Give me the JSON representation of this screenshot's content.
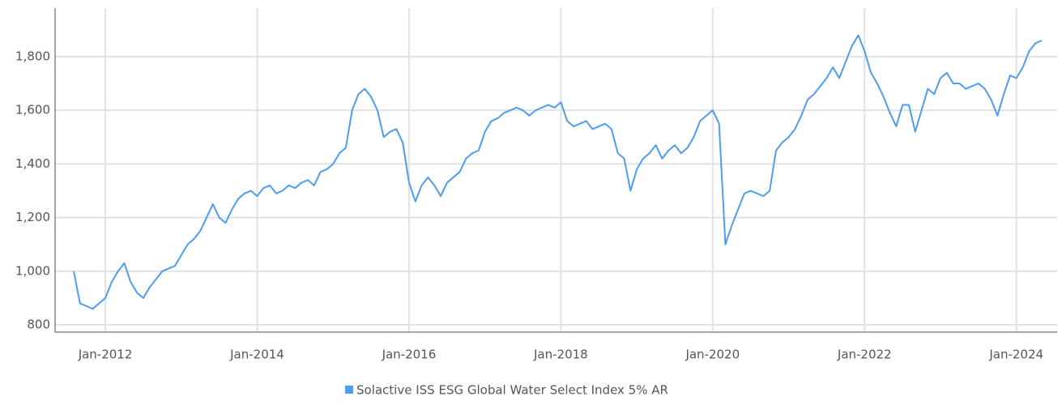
{
  "chart_data": {
    "type": "line",
    "x": [
      "Aug-2011",
      "Sep-2011",
      "Oct-2011",
      "Nov-2011",
      "Dec-2011",
      "Jan-2012",
      "Feb-2012",
      "Mar-2012",
      "Apr-2012",
      "May-2012",
      "Jun-2012",
      "Jul-2012",
      "Aug-2012",
      "Sep-2012",
      "Oct-2012",
      "Nov-2012",
      "Dec-2012",
      "Jan-2013",
      "Feb-2013",
      "Mar-2013",
      "Apr-2013",
      "May-2013",
      "Jun-2013",
      "Jul-2013",
      "Aug-2013",
      "Sep-2013",
      "Oct-2013",
      "Nov-2013",
      "Dec-2013",
      "Jan-2014",
      "Feb-2014",
      "Mar-2014",
      "Apr-2014",
      "May-2014",
      "Jun-2014",
      "Jul-2014",
      "Aug-2014",
      "Sep-2014",
      "Oct-2014",
      "Nov-2014",
      "Dec-2014",
      "Jan-2015",
      "Feb-2015",
      "Mar-2015",
      "Apr-2015",
      "May-2015",
      "Jun-2015",
      "Jul-2015",
      "Aug-2015",
      "Sep-2015",
      "Oct-2015",
      "Nov-2015",
      "Dec-2015",
      "Jan-2016",
      "Feb-2016",
      "Mar-2016",
      "Apr-2016",
      "May-2016",
      "Jun-2016",
      "Jul-2016",
      "Aug-2016",
      "Sep-2016",
      "Oct-2016",
      "Nov-2016",
      "Dec-2016",
      "Jan-2017",
      "Feb-2017",
      "Mar-2017",
      "Apr-2017",
      "May-2017",
      "Jun-2017",
      "Jul-2017",
      "Aug-2017",
      "Sep-2017",
      "Oct-2017",
      "Nov-2017",
      "Dec-2017",
      "Jan-2018",
      "Feb-2018",
      "Mar-2018",
      "Apr-2018",
      "May-2018",
      "Jun-2018",
      "Jul-2018",
      "Aug-2018",
      "Sep-2018",
      "Oct-2018",
      "Nov-2018",
      "Dec-2018",
      "Jan-2019",
      "Feb-2019",
      "Mar-2019",
      "Apr-2019",
      "May-2019",
      "Jun-2019",
      "Jul-2019",
      "Aug-2019",
      "Sep-2019",
      "Oct-2019",
      "Nov-2019",
      "Dec-2019",
      "Jan-2020",
      "Feb-2020",
      "Mar-2020",
      "Apr-2020",
      "May-2020",
      "Jun-2020",
      "Jul-2020",
      "Aug-2020",
      "Sep-2020",
      "Oct-2020",
      "Nov-2020",
      "Dec-2020",
      "Jan-2021",
      "Feb-2021",
      "Mar-2021",
      "Apr-2021",
      "May-2021",
      "Jun-2021",
      "Jul-2021",
      "Aug-2021",
      "Sep-2021",
      "Oct-2021",
      "Nov-2021",
      "Dec-2021",
      "Jan-2022",
      "Feb-2022",
      "Mar-2022",
      "Apr-2022",
      "May-2022",
      "Jun-2022",
      "Jul-2022",
      "Aug-2022",
      "Sep-2022",
      "Oct-2022",
      "Nov-2022",
      "Dec-2022",
      "Jan-2023",
      "Feb-2023",
      "Mar-2023",
      "Apr-2023",
      "May-2023",
      "Jun-2023",
      "Jul-2023",
      "Aug-2023",
      "Sep-2023",
      "Oct-2023",
      "Nov-2023",
      "Dec-2023",
      "Jan-2024",
      "Feb-2024",
      "Mar-2024",
      "Apr-2024",
      "May-2024"
    ],
    "series": [
      {
        "name": "Solactive ISS ESG Global Water Select Index 5% AR",
        "color": "#4f9cf0",
        "values": [
          1000,
          880,
          870,
          860,
          880,
          900,
          960,
          1000,
          1030,
          960,
          920,
          900,
          940,
          970,
          1000,
          1010,
          1020,
          1060,
          1100,
          1120,
          1150,
          1200,
          1250,
          1200,
          1180,
          1230,
          1270,
          1290,
          1300,
          1280,
          1310,
          1320,
          1290,
          1300,
          1320,
          1310,
          1330,
          1340,
          1320,
          1370,
          1380,
          1400,
          1440,
          1460,
          1600,
          1660,
          1680,
          1650,
          1600,
          1500,
          1520,
          1530,
          1480,
          1330,
          1260,
          1320,
          1350,
          1320,
          1280,
          1330,
          1350,
          1370,
          1420,
          1440,
          1450,
          1520,
          1560,
          1570,
          1590,
          1600,
          1610,
          1600,
          1580,
          1600,
          1610,
          1620,
          1610,
          1630,
          1560,
          1540,
          1550,
          1560,
          1530,
          1540,
          1550,
          1530,
          1440,
          1420,
          1300,
          1380,
          1420,
          1440,
          1470,
          1420,
          1450,
          1470,
          1440,
          1460,
          1500,
          1560,
          1580,
          1600,
          1550,
          1100,
          1170,
          1230,
          1290,
          1300,
          1290,
          1280,
          1300,
          1450,
          1480,
          1500,
          1530,
          1580,
          1640,
          1660,
          1690,
          1720,
          1760,
          1720,
          1780,
          1840,
          1880,
          1820,
          1740,
          1700,
          1650,
          1590,
          1540,
          1620,
          1620,
          1520,
          1600,
          1680,
          1660,
          1720,
          1740,
          1700,
          1700,
          1680,
          1690,
          1700,
          1680,
          1640,
          1580,
          1660,
          1730,
          1720,
          1760,
          1820,
          1850,
          1860
        ]
      }
    ],
    "xticks": [
      "Jan-2012",
      "Jan-2014",
      "Jan-2016",
      "Jan-2018",
      "Jan-2020",
      "Jan-2022",
      "Jan-2024"
    ],
    "ylim": [
      773,
      1981
    ],
    "yticks": [
      {
        "value": 800,
        "label": "800"
      },
      {
        "value": 1000,
        "label": "1,000"
      },
      {
        "value": 1200,
        "label": "1,200"
      },
      {
        "value": 1400,
        "label": "1,400"
      },
      {
        "value": 1600,
        "label": "1,600"
      },
      {
        "value": 1800,
        "label": "1,800"
      }
    ],
    "grid": true
  }
}
